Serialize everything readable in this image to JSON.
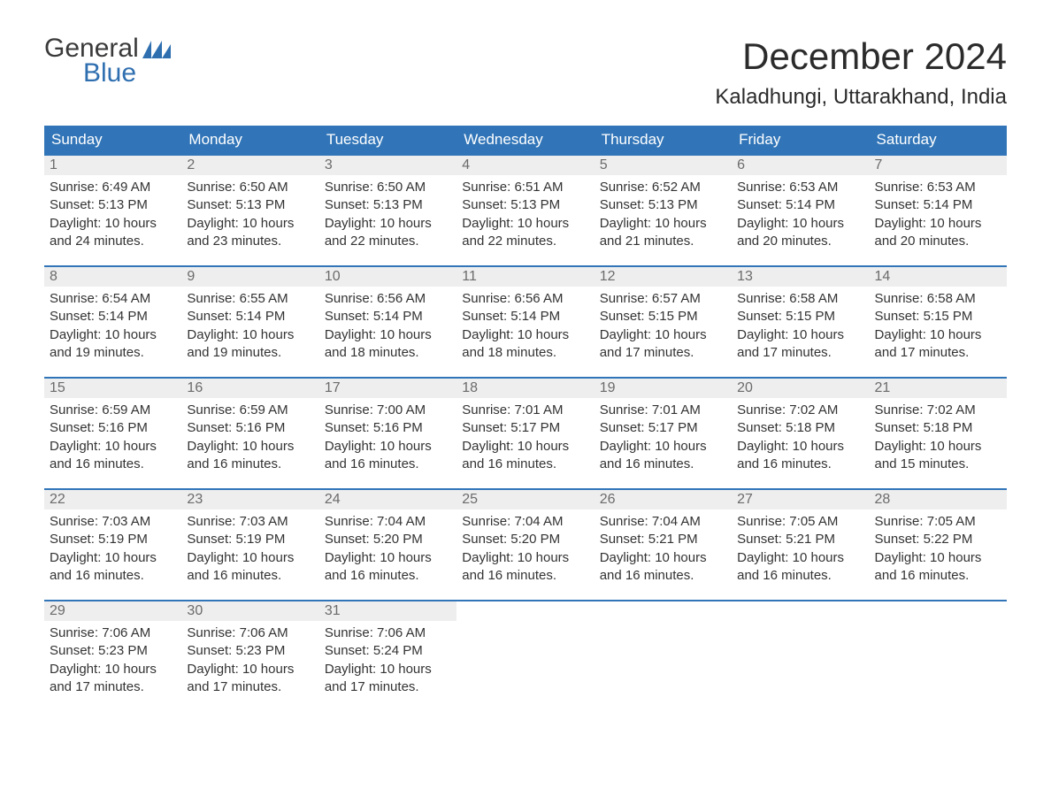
{
  "logo": {
    "top": "General",
    "bottom": "Blue",
    "flag_color": "#2f6fb0"
  },
  "title": "December 2024",
  "location": "Kaladhungi, Uttarakhand, India",
  "colors": {
    "header_bg": "#3175b8",
    "header_text": "#ffffff",
    "daynum_bg": "#eeeeee",
    "daynum_text": "#6b6b6b",
    "body_text": "#333333",
    "row_border": "#3175b8"
  },
  "weekdays": [
    "Sunday",
    "Monday",
    "Tuesday",
    "Wednesday",
    "Thursday",
    "Friday",
    "Saturday"
  ],
  "weeks": [
    [
      {
        "n": "1",
        "sunrise": "Sunrise: 6:49 AM",
        "sunset": "Sunset: 5:13 PM",
        "daylight1": "Daylight: 10 hours",
        "daylight2": "and 24 minutes."
      },
      {
        "n": "2",
        "sunrise": "Sunrise: 6:50 AM",
        "sunset": "Sunset: 5:13 PM",
        "daylight1": "Daylight: 10 hours",
        "daylight2": "and 23 minutes."
      },
      {
        "n": "3",
        "sunrise": "Sunrise: 6:50 AM",
        "sunset": "Sunset: 5:13 PM",
        "daylight1": "Daylight: 10 hours",
        "daylight2": "and 22 minutes."
      },
      {
        "n": "4",
        "sunrise": "Sunrise: 6:51 AM",
        "sunset": "Sunset: 5:13 PM",
        "daylight1": "Daylight: 10 hours",
        "daylight2": "and 22 minutes."
      },
      {
        "n": "5",
        "sunrise": "Sunrise: 6:52 AM",
        "sunset": "Sunset: 5:13 PM",
        "daylight1": "Daylight: 10 hours",
        "daylight2": "and 21 minutes."
      },
      {
        "n": "6",
        "sunrise": "Sunrise: 6:53 AM",
        "sunset": "Sunset: 5:14 PM",
        "daylight1": "Daylight: 10 hours",
        "daylight2": "and 20 minutes."
      },
      {
        "n": "7",
        "sunrise": "Sunrise: 6:53 AM",
        "sunset": "Sunset: 5:14 PM",
        "daylight1": "Daylight: 10 hours",
        "daylight2": "and 20 minutes."
      }
    ],
    [
      {
        "n": "8",
        "sunrise": "Sunrise: 6:54 AM",
        "sunset": "Sunset: 5:14 PM",
        "daylight1": "Daylight: 10 hours",
        "daylight2": "and 19 minutes."
      },
      {
        "n": "9",
        "sunrise": "Sunrise: 6:55 AM",
        "sunset": "Sunset: 5:14 PM",
        "daylight1": "Daylight: 10 hours",
        "daylight2": "and 19 minutes."
      },
      {
        "n": "10",
        "sunrise": "Sunrise: 6:56 AM",
        "sunset": "Sunset: 5:14 PM",
        "daylight1": "Daylight: 10 hours",
        "daylight2": "and 18 minutes."
      },
      {
        "n": "11",
        "sunrise": "Sunrise: 6:56 AM",
        "sunset": "Sunset: 5:14 PM",
        "daylight1": "Daylight: 10 hours",
        "daylight2": "and 18 minutes."
      },
      {
        "n": "12",
        "sunrise": "Sunrise: 6:57 AM",
        "sunset": "Sunset: 5:15 PM",
        "daylight1": "Daylight: 10 hours",
        "daylight2": "and 17 minutes."
      },
      {
        "n": "13",
        "sunrise": "Sunrise: 6:58 AM",
        "sunset": "Sunset: 5:15 PM",
        "daylight1": "Daylight: 10 hours",
        "daylight2": "and 17 minutes."
      },
      {
        "n": "14",
        "sunrise": "Sunrise: 6:58 AM",
        "sunset": "Sunset: 5:15 PM",
        "daylight1": "Daylight: 10 hours",
        "daylight2": "and 17 minutes."
      }
    ],
    [
      {
        "n": "15",
        "sunrise": "Sunrise: 6:59 AM",
        "sunset": "Sunset: 5:16 PM",
        "daylight1": "Daylight: 10 hours",
        "daylight2": "and 16 minutes."
      },
      {
        "n": "16",
        "sunrise": "Sunrise: 6:59 AM",
        "sunset": "Sunset: 5:16 PM",
        "daylight1": "Daylight: 10 hours",
        "daylight2": "and 16 minutes."
      },
      {
        "n": "17",
        "sunrise": "Sunrise: 7:00 AM",
        "sunset": "Sunset: 5:16 PM",
        "daylight1": "Daylight: 10 hours",
        "daylight2": "and 16 minutes."
      },
      {
        "n": "18",
        "sunrise": "Sunrise: 7:01 AM",
        "sunset": "Sunset: 5:17 PM",
        "daylight1": "Daylight: 10 hours",
        "daylight2": "and 16 minutes."
      },
      {
        "n": "19",
        "sunrise": "Sunrise: 7:01 AM",
        "sunset": "Sunset: 5:17 PM",
        "daylight1": "Daylight: 10 hours",
        "daylight2": "and 16 minutes."
      },
      {
        "n": "20",
        "sunrise": "Sunrise: 7:02 AM",
        "sunset": "Sunset: 5:18 PM",
        "daylight1": "Daylight: 10 hours",
        "daylight2": "and 16 minutes."
      },
      {
        "n": "21",
        "sunrise": "Sunrise: 7:02 AM",
        "sunset": "Sunset: 5:18 PM",
        "daylight1": "Daylight: 10 hours",
        "daylight2": "and 15 minutes."
      }
    ],
    [
      {
        "n": "22",
        "sunrise": "Sunrise: 7:03 AM",
        "sunset": "Sunset: 5:19 PM",
        "daylight1": "Daylight: 10 hours",
        "daylight2": "and 16 minutes."
      },
      {
        "n": "23",
        "sunrise": "Sunrise: 7:03 AM",
        "sunset": "Sunset: 5:19 PM",
        "daylight1": "Daylight: 10 hours",
        "daylight2": "and 16 minutes."
      },
      {
        "n": "24",
        "sunrise": "Sunrise: 7:04 AM",
        "sunset": "Sunset: 5:20 PM",
        "daylight1": "Daylight: 10 hours",
        "daylight2": "and 16 minutes."
      },
      {
        "n": "25",
        "sunrise": "Sunrise: 7:04 AM",
        "sunset": "Sunset: 5:20 PM",
        "daylight1": "Daylight: 10 hours",
        "daylight2": "and 16 minutes."
      },
      {
        "n": "26",
        "sunrise": "Sunrise: 7:04 AM",
        "sunset": "Sunset: 5:21 PM",
        "daylight1": "Daylight: 10 hours",
        "daylight2": "and 16 minutes."
      },
      {
        "n": "27",
        "sunrise": "Sunrise: 7:05 AM",
        "sunset": "Sunset: 5:21 PM",
        "daylight1": "Daylight: 10 hours",
        "daylight2": "and 16 minutes."
      },
      {
        "n": "28",
        "sunrise": "Sunrise: 7:05 AM",
        "sunset": "Sunset: 5:22 PM",
        "daylight1": "Daylight: 10 hours",
        "daylight2": "and 16 minutes."
      }
    ],
    [
      {
        "n": "29",
        "sunrise": "Sunrise: 7:06 AM",
        "sunset": "Sunset: 5:23 PM",
        "daylight1": "Daylight: 10 hours",
        "daylight2": "and 17 minutes."
      },
      {
        "n": "30",
        "sunrise": "Sunrise: 7:06 AM",
        "sunset": "Sunset: 5:23 PM",
        "daylight1": "Daylight: 10 hours",
        "daylight2": "and 17 minutes."
      },
      {
        "n": "31",
        "sunrise": "Sunrise: 7:06 AM",
        "sunset": "Sunset: 5:24 PM",
        "daylight1": "Daylight: 10 hours",
        "daylight2": "and 17 minutes."
      },
      null,
      null,
      null,
      null
    ]
  ]
}
